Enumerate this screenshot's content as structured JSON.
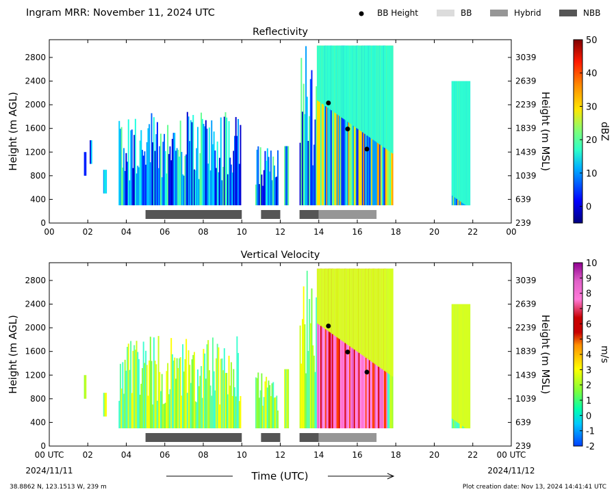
{
  "figure": {
    "title": "Ingram MRR:  November 11, 2024 UTC",
    "xlabel": "Time (UTC)",
    "location": "38.8862 N, 123.1513 W, 239 m",
    "creation": "Plot creation date: Nov 13, 2024 14:41:41 UTC",
    "date_left": "2024/11/11",
    "date_right": "2024/11/12"
  },
  "legend": [
    {
      "label": "BB Height",
      "kind": "dot",
      "color": "#000000"
    },
    {
      "label": "BB",
      "kind": "bar",
      "color": "#dcdcdc"
    },
    {
      "label": "Hybrid",
      "kind": "bar",
      "color": "#969696"
    },
    {
      "label": "NBB",
      "kind": "bar",
      "color": "#555555"
    }
  ],
  "chart_data": [
    {
      "type": "heatmap",
      "title": "Reflectivity",
      "ylabel": "Height (m AGL)",
      "ylabel_right": "Height (m MSL)",
      "x_ticks": [
        "00",
        "02",
        "04",
        "06",
        "08",
        "10",
        "12",
        "14",
        "16",
        "18",
        "20",
        "22",
        "00"
      ],
      "y_ticks": [
        0,
        400,
        800,
        1200,
        1600,
        2000,
        2400,
        2800
      ],
      "y_ticks_right": [
        239,
        639,
        1039,
        1439,
        1839,
        2239,
        2639,
        3039
      ],
      "xlim": [
        0,
        24
      ],
      "ylim": [
        0,
        3100
      ],
      "colorbar": {
        "label": "dBZ",
        "min": -5,
        "max": 50,
        "ticks": [
          0,
          10,
          20,
          30,
          40,
          50
        ]
      },
      "bb_height_points": [
        {
          "x": 14.5,
          "y": 2030
        },
        {
          "x": 15.5,
          "y": 1590
        },
        {
          "x": 16.5,
          "y": 1250
        }
      ],
      "bb_type_periods": [
        {
          "start": 5.0,
          "end": 10.0,
          "type": "NBB"
        },
        {
          "start": 11.0,
          "end": 12.0,
          "type": "NBB"
        },
        {
          "start": 13.0,
          "end": 14.0,
          "type": "NBB"
        },
        {
          "start": 14.0,
          "end": 17.0,
          "type": "Hybrid"
        }
      ],
      "precip_periods": [
        {
          "start": 1.8,
          "end": 1.9,
          "top": 1200,
          "bottom": 800
        },
        {
          "start": 2.1,
          "end": 2.2,
          "top": 1400,
          "bottom": 1000
        },
        {
          "start": 2.8,
          "end": 2.95,
          "top": 900,
          "bottom": 500
        },
        {
          "start": 3.6,
          "end": 9.95,
          "top": 1900,
          "bottom": 300
        },
        {
          "start": 10.7,
          "end": 11.9,
          "top": 1300,
          "bottom": 300
        },
        {
          "start": 12.2,
          "end": 12.4,
          "top": 1300,
          "bottom": 300
        },
        {
          "start": 13.0,
          "end": 13.9,
          "top": 3000,
          "bottom": 300
        },
        {
          "start": 13.9,
          "end": 17.8,
          "top": 3000,
          "bottom": 300
        },
        {
          "start": 20.9,
          "end": 21.8,
          "top": 2400,
          "bottom": 300
        }
      ]
    },
    {
      "type": "heatmap",
      "title": "Vertical Velocity",
      "ylabel": "Height (m AGL)",
      "ylabel_right": "Height (m MSL)",
      "x_ticks": [
        "00 UTC",
        "02",
        "04",
        "06",
        "08",
        "10",
        "12",
        "14",
        "16",
        "18",
        "20",
        "22",
        "00 UTC"
      ],
      "y_ticks": [
        0,
        400,
        800,
        1200,
        1600,
        2000,
        2400,
        2800
      ],
      "y_ticks_right": [
        239,
        639,
        1039,
        1439,
        1839,
        2239,
        2639,
        3039
      ],
      "xlim": [
        0,
        24
      ],
      "ylim": [
        0,
        3100
      ],
      "colorbar": {
        "label": "m/s",
        "min": -2,
        "max": 10,
        "ticks": [
          -2,
          -1,
          0,
          1,
          2,
          3,
          4,
          5,
          6,
          7,
          8,
          9,
          10
        ]
      },
      "bb_height_points": [
        {
          "x": 14.5,
          "y": 2030
        },
        {
          "x": 15.5,
          "y": 1590
        },
        {
          "x": 16.5,
          "y": 1250
        }
      ],
      "bb_type_periods": [
        {
          "start": 5.0,
          "end": 10.0,
          "type": "NBB"
        },
        {
          "start": 11.0,
          "end": 12.0,
          "type": "NBB"
        },
        {
          "start": 13.0,
          "end": 14.0,
          "type": "NBB"
        },
        {
          "start": 14.0,
          "end": 17.0,
          "type": "Hybrid"
        }
      ],
      "precip_periods": [
        {
          "start": 1.8,
          "end": 1.9,
          "top": 1200,
          "bottom": 800
        },
        {
          "start": 2.8,
          "end": 2.95,
          "top": 900,
          "bottom": 500
        },
        {
          "start": 3.6,
          "end": 9.95,
          "top": 1900,
          "bottom": 300
        },
        {
          "start": 10.7,
          "end": 11.9,
          "top": 1300,
          "bottom": 300
        },
        {
          "start": 12.2,
          "end": 12.4,
          "top": 1300,
          "bottom": 300
        },
        {
          "start": 13.0,
          "end": 13.9,
          "top": 3000,
          "bottom": 300
        },
        {
          "start": 13.9,
          "end": 17.8,
          "top": 3000,
          "bottom": 300
        },
        {
          "start": 20.9,
          "end": 21.8,
          "top": 2400,
          "bottom": 300
        }
      ]
    }
  ]
}
